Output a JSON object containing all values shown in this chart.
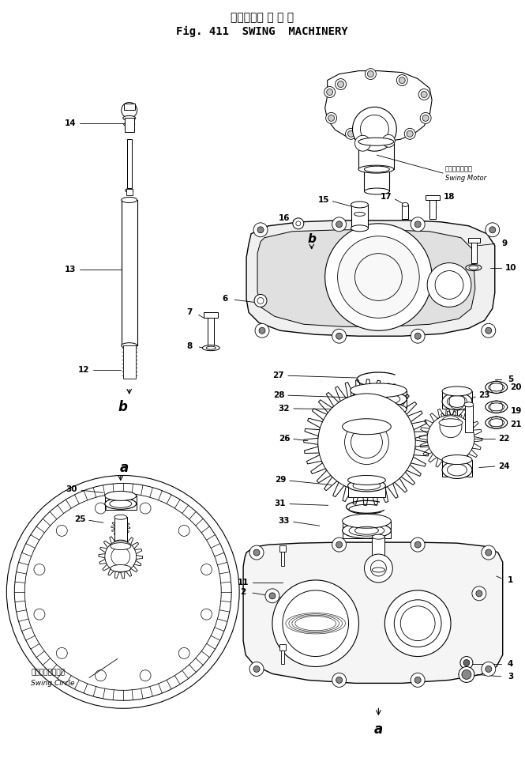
{
  "title_jp": "スイングマ シ ナ リ",
  "title_en": "Fig. 411  SWING  MACHINERY",
  "bg_color": "#ffffff",
  "fig_width": 6.65,
  "fig_height": 9.59,
  "label_swing_motor_jp": "スイングモータ",
  "label_swing_motor_en": "Swing Motor",
  "label_swing_circle_jp": "スイングサークル",
  "label_swing_circle_en": "Swing Circle"
}
